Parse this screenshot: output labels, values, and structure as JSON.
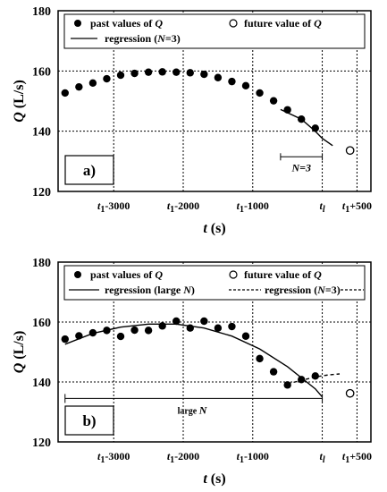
{
  "chart_data": [
    {
      "type": "scatter",
      "panel_label": "a)",
      "xlabel": "t (s)",
      "ylabel": "Q (L/s)",
      "ylim": [
        120,
        180
      ],
      "yticks": [
        "120",
        "140",
        "160",
        "180"
      ],
      "xtick_labels": [
        "t1-3000",
        "t1-2000",
        "t1-1000",
        "tl",
        "t1+500"
      ],
      "xtick_values": [
        -3000,
        -2000,
        -1000,
        0,
        500
      ],
      "grid": true,
      "legend": {
        "past_values": "past values of Q",
        "future_value": "future value of Q",
        "regression": "regression (N=3)"
      },
      "annotation": "N=3",
      "series": [
        {
          "name": "past values of Q",
          "x": [
            -3700,
            -3500,
            -3300,
            -3100,
            -2900,
            -2700,
            -2500,
            -2300,
            -2100,
            -1900,
            -1700,
            -1500,
            -1300,
            -1100,
            -900,
            -700,
            -500,
            -300,
            -100
          ],
          "y": [
            152.7,
            154.7,
            156.0,
            157.4,
            158.6,
            159.2,
            159.6,
            159.7,
            159.6,
            159.4,
            158.9,
            157.8,
            156.5,
            155.1,
            152.7,
            150.1,
            147.1,
            144.0,
            141.0
          ]
        },
        {
          "name": "future value of Q",
          "x": [
            400
          ],
          "y": [
            133.6
          ]
        },
        {
          "name": "regression (N=3)",
          "x": [
            -600,
            -300,
            -100,
            0,
            150
          ],
          "y": [
            147.2,
            144.0,
            140.0,
            137.6,
            135.2
          ]
        }
      ]
    },
    {
      "type": "scatter",
      "panel_label": "b)",
      "xlabel": "t (s)",
      "ylabel": "Q (L/s)",
      "ylim": [
        120,
        180
      ],
      "yticks": [
        "120",
        "140",
        "160",
        "180"
      ],
      "xtick_labels": [
        "t1-3000",
        "t1-2000",
        "t1-1000",
        "tl",
        "t1+500"
      ],
      "xtick_values": [
        -3000,
        -2000,
        -1000,
        0,
        500
      ],
      "grid": true,
      "legend": {
        "past_values": "past values of Q",
        "future_value": "future value of Q",
        "regression_large": "regression (large N)",
        "regression_n3": "regression (N=3)"
      },
      "annotation": "large N",
      "series": [
        {
          "name": "past values of Q",
          "x": [
            -3700,
            -3500,
            -3300,
            -3100,
            -2900,
            -2700,
            -2500,
            -2300,
            -2100,
            -1900,
            -1700,
            -1500,
            -1300,
            -1100,
            -900,
            -700,
            -500,
            -300,
            -100
          ],
          "y": [
            154.3,
            155.4,
            156.4,
            157.2,
            155.2,
            157.3,
            157.2,
            158.7,
            160.3,
            158.0,
            160.3,
            158.0,
            158.5,
            155.3,
            147.8,
            143.4,
            139.0,
            140.8,
            142.0
          ]
        },
        {
          "name": "future value of Q",
          "x": [
            400
          ],
          "y": [
            136.2
          ]
        },
        {
          "name": "regression (large N)",
          "x": [
            -3700,
            -3300,
            -2900,
            -2500,
            -2100,
            -1700,
            -1300,
            -900,
            -500,
            -100,
            0
          ],
          "y": [
            152.6,
            156.2,
            158.3,
            159.3,
            159.3,
            158.0,
            155.3,
            151.0,
            145.1,
            137.7,
            135.0
          ]
        },
        {
          "name": "regression (N=3)",
          "x": [
            -500,
            -300,
            -100,
            100,
            250
          ],
          "y": [
            139.4,
            140.5,
            141.7,
            142.4,
            142.7
          ]
        }
      ]
    }
  ]
}
